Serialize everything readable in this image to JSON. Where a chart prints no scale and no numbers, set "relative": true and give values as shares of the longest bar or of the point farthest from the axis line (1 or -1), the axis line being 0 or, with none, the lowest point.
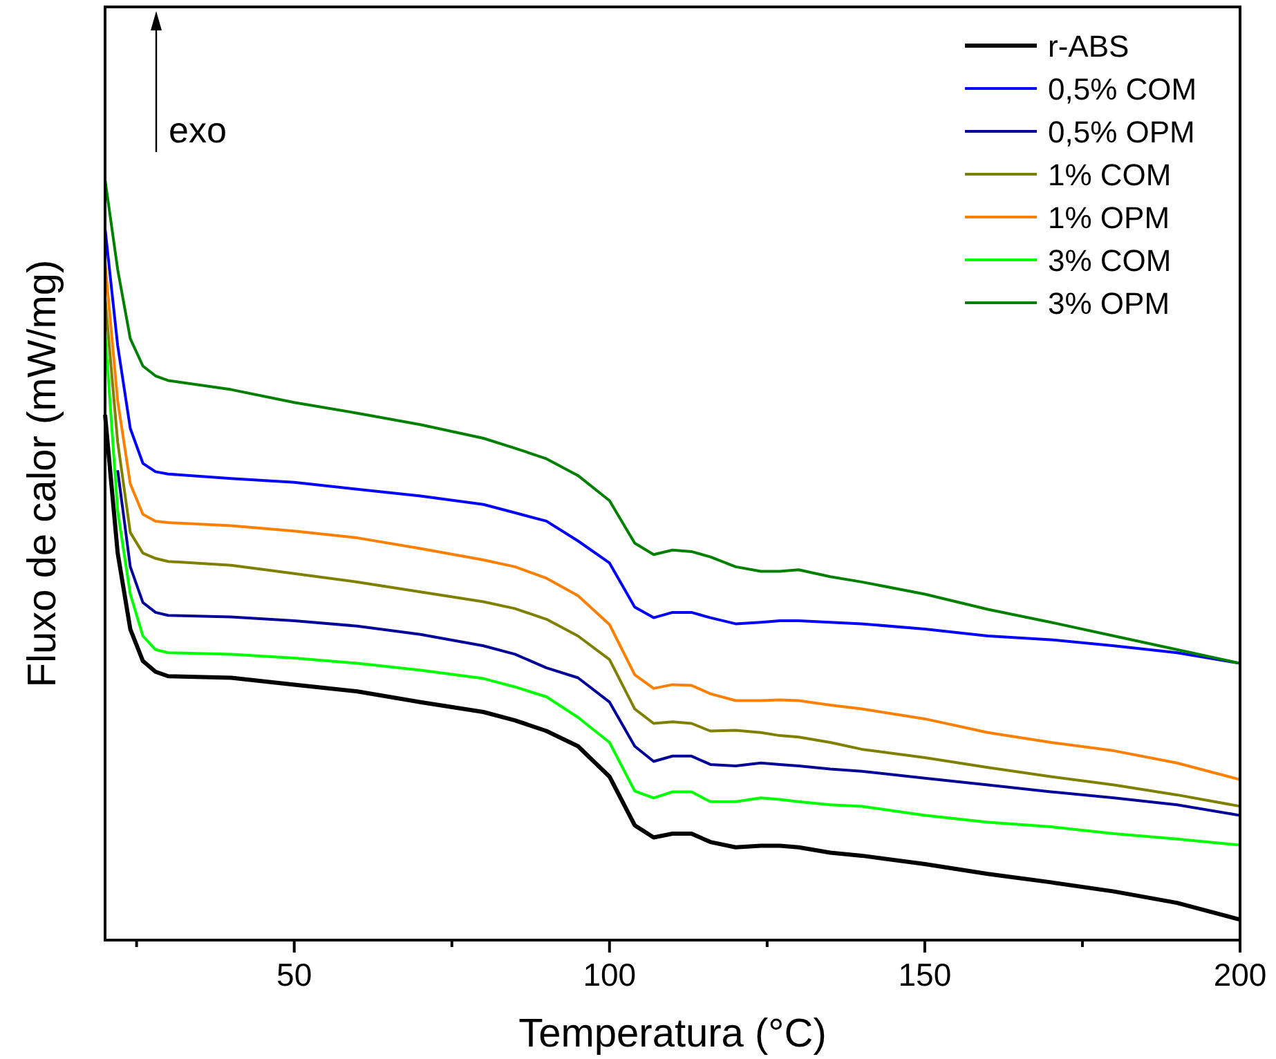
{
  "chart_data": {
    "type": "line",
    "relative": true,
    "xlabel": "Temperatura (°C)",
    "ylabel": "Fluxo de calor (mW/mg)",
    "annotations": [
      "exo"
    ],
    "legend": "top right",
    "xlim": [
      20,
      200
    ],
    "xticks": [
      {
        "value": 25,
        "label": null
      },
      50,
      {
        "value": 75,
        "label": null
      },
      100,
      {
        "value": 125,
        "label": null
      },
      150,
      {
        "value": 175,
        "label": null
      },
      200
    ],
    "x": [
      20,
      22,
      24,
      26,
      28,
      30,
      40,
      50,
      60,
      70,
      80,
      85,
      90,
      95,
      100,
      104,
      107,
      110,
      113,
      116,
      120,
      124,
      127,
      130,
      135,
      140,
      150,
      160,
      170,
      180,
      190,
      200
    ],
    "series": [
      {
        "name": "r-ABS",
        "color": "#000000",
        "values": [
          0.691,
          0.509,
          0.409,
          0.367,
          0.353,
          0.347,
          0.345,
          0.336,
          0.327,
          0.313,
          0.3,
          0.289,
          0.275,
          0.255,
          0.215,
          0.151,
          0.135,
          0.14,
          0.14,
          0.129,
          0.122,
          0.124,
          0.124,
          0.122,
          0.115,
          0.111,
          0.1,
          0.087,
          0.076,
          0.064,
          0.049,
          0.027
        ]
      },
      {
        "name": "0,5% COM",
        "color": "#0000ff",
        "values": [
          0.936,
          0.782,
          0.673,
          0.627,
          0.616,
          0.613,
          0.607,
          0.602,
          0.593,
          0.584,
          0.573,
          0.562,
          0.551,
          0.525,
          0.496,
          0.438,
          0.424,
          0.431,
          0.431,
          0.424,
          0.416,
          0.418,
          0.42,
          0.42,
          0.418,
          0.416,
          0.409,
          0.4,
          0.395,
          0.387,
          0.378,
          0.364
        ]
      },
      {
        "name": "0,5% OPM",
        "color": "#000099",
        "values": [
          null,
          0.618,
          0.491,
          0.444,
          0.431,
          0.427,
          0.425,
          0.42,
          0.413,
          0.402,
          0.387,
          0.376,
          0.358,
          0.345,
          0.313,
          0.255,
          0.235,
          0.242,
          0.242,
          0.231,
          0.229,
          0.233,
          0.231,
          0.229,
          0.225,
          0.222,
          0.213,
          0.204,
          0.195,
          0.187,
          0.178,
          0.164
        ]
      },
      {
        "name": "1% COM",
        "color": "#808000",
        "values": [
          0.845,
          0.655,
          0.536,
          0.509,
          0.502,
          0.498,
          0.493,
          0.482,
          0.471,
          0.458,
          0.445,
          0.436,
          0.422,
          0.4,
          0.369,
          0.304,
          0.285,
          0.287,
          0.285,
          0.275,
          0.276,
          0.273,
          0.269,
          0.267,
          0.26,
          0.251,
          0.24,
          0.227,
          0.215,
          0.204,
          0.191,
          0.176
        ]
      },
      {
        "name": "1% OPM",
        "color": "#ff8000",
        "values": [
          0.891,
          0.709,
          0.6,
          0.56,
          0.551,
          0.549,
          0.545,
          0.538,
          0.529,
          0.515,
          0.5,
          0.491,
          0.476,
          0.453,
          0.415,
          0.349,
          0.331,
          0.336,
          0.335,
          0.324,
          0.315,
          0.315,
          0.316,
          0.315,
          0.309,
          0.304,
          0.291,
          0.273,
          0.26,
          0.249,
          0.233,
          0.211
        ]
      },
      {
        "name": "3% COM",
        "color": "#00ff00",
        "values": [
          0.8,
          0.564,
          0.455,
          0.4,
          0.382,
          0.378,
          0.376,
          0.371,
          0.364,
          0.355,
          0.344,
          0.333,
          0.32,
          0.293,
          0.26,
          0.196,
          0.187,
          0.195,
          0.195,
          0.182,
          0.182,
          0.187,
          0.185,
          0.182,
          0.178,
          0.176,
          0.164,
          0.155,
          0.149,
          0.14,
          0.133,
          0.125
        ]
      },
      {
        "name": "3% OPM",
        "color": "#008000",
        "values": [
          1.0,
          0.882,
          0.791,
          0.755,
          0.742,
          0.736,
          0.724,
          0.707,
          0.693,
          0.678,
          0.66,
          0.647,
          0.633,
          0.611,
          0.578,
          0.522,
          0.507,
          0.513,
          0.511,
          0.504,
          0.491,
          0.485,
          0.485,
          0.487,
          0.478,
          0.471,
          0.455,
          0.435,
          0.418,
          0.4,
          0.382,
          0.364
        ]
      }
    ]
  }
}
